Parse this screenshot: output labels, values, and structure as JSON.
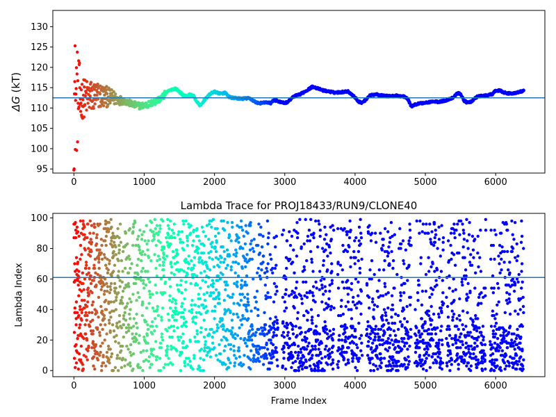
{
  "chart_data": [
    {
      "type": "scatter",
      "title": "",
      "xlabel": "",
      "ylabel": "ΔG (kT)",
      "ylabel_parts": {
        "symbol": "ΔG",
        "unit": " (kT)"
      },
      "xlim": [
        -300,
        6700
      ],
      "ylim": [
        94,
        134
      ],
      "xticks": [
        0,
        1000,
        2000,
        3000,
        4000,
        5000,
        6000
      ],
      "yticks": [
        95,
        100,
        105,
        110,
        115,
        120,
        125,
        130
      ],
      "hline": 112.5,
      "hline_color": "#1f77b4",
      "colormap": "rainbow (red at start → violet at end)",
      "x_max": 6400,
      "trend": [
        [
          50,
          112.0
        ],
        [
          150,
          112.5
        ],
        [
          250,
          112.8
        ],
        [
          350,
          113.0
        ],
        [
          450,
          112.8
        ],
        [
          550,
          112.5
        ],
        [
          650,
          112.0
        ],
        [
          750,
          111.5
        ],
        [
          850,
          110.8
        ],
        [
          950,
          110.5
        ],
        [
          1050,
          110.8
        ],
        [
          1150,
          111.5
        ],
        [
          1250,
          112.5
        ],
        [
          1300,
          113.5
        ],
        [
          1350,
          114.2
        ],
        [
          1400,
          114.6
        ],
        [
          1450,
          114.8
        ],
        [
          1500,
          114.0
        ],
        [
          1550,
          113.2
        ],
        [
          1600,
          112.9
        ],
        [
          1650,
          113.3
        ],
        [
          1700,
          113.0
        ],
        [
          1750,
          111.5
        ],
        [
          1800,
          110.5
        ],
        [
          1850,
          111.8
        ],
        [
          1900,
          112.8
        ],
        [
          1950,
          113.6
        ],
        [
          2000,
          114.0
        ],
        [
          2050,
          113.7
        ],
        [
          2100,
          113.5
        ],
        [
          2150,
          113.8
        ],
        [
          2200,
          112.8
        ],
        [
          2250,
          112.5
        ],
        [
          2300,
          112.4
        ],
        [
          2400,
          112.3
        ],
        [
          2500,
          112.4
        ],
        [
          2550,
          111.8
        ],
        [
          2600,
          111.3
        ],
        [
          2650,
          111.2
        ],
        [
          2750,
          111.4
        ],
        [
          2800,
          111.2
        ],
        [
          2850,
          112.0
        ],
        [
          2900,
          111.7
        ],
        [
          2950,
          111.4
        ],
        [
          3000,
          111.2
        ],
        [
          3050,
          111.6
        ],
        [
          3100,
          112.5
        ],
        [
          3150,
          113.0
        ],
        [
          3200,
          113.2
        ],
        [
          3300,
          114.2
        ],
        [
          3400,
          115.3
        ],
        [
          3450,
          114.9
        ],
        [
          3500,
          114.6
        ],
        [
          3550,
          114.3
        ],
        [
          3650,
          114.0
        ],
        [
          3700,
          113.8
        ],
        [
          3800,
          113.9
        ],
        [
          3900,
          114.1
        ],
        [
          4000,
          112.6
        ],
        [
          4050,
          111.6
        ],
        [
          4100,
          111.3
        ],
        [
          4150,
          112.0
        ],
        [
          4200,
          113.0
        ],
        [
          4300,
          113.4
        ],
        [
          4400,
          113.0
        ],
        [
          4500,
          112.9
        ],
        [
          4600,
          113.0
        ],
        [
          4700,
          112.8
        ],
        [
          4750,
          112.2
        ],
        [
          4800,
          110.4
        ],
        [
          4850,
          110.8
        ],
        [
          4900,
          111.1
        ],
        [
          5000,
          111.3
        ],
        [
          5100,
          111.6
        ],
        [
          5200,
          111.5
        ],
        [
          5300,
          111.9
        ],
        [
          5400,
          112.6
        ],
        [
          5450,
          113.6
        ],
        [
          5500,
          113.5
        ],
        [
          5550,
          111.8
        ],
        [
          5600,
          111.3
        ],
        [
          5650,
          111.5
        ],
        [
          5700,
          112.3
        ],
        [
          5750,
          112.9
        ],
        [
          5850,
          113.0
        ],
        [
          5950,
          113.4
        ],
        [
          6000,
          114.2
        ],
        [
          6050,
          114.3
        ],
        [
          6100,
          114.0
        ],
        [
          6150,
          113.6
        ],
        [
          6250,
          113.6
        ],
        [
          6300,
          113.8
        ],
        [
          6350,
          114.0
        ],
        [
          6400,
          114.2
        ]
      ]
    },
    {
      "type": "scatter",
      "title": "Lambda Trace for PROJ18433/RUN9/CLONE40",
      "xlabel": "Frame Index",
      "ylabel": "Lambda Index",
      "xlim": [
        -300,
        6700
      ],
      "ylim": [
        -4,
        103
      ],
      "xticks": [
        0,
        1000,
        2000,
        3000,
        4000,
        5000,
        6000
      ],
      "yticks": [
        0,
        20,
        40,
        60,
        80,
        100
      ],
      "hline": 61,
      "hline_color": "#1f77b4",
      "colormap": "rainbow (red at start → violet at end)",
      "x_max": 6400,
      "lambda_min": 0,
      "lambda_max": 99
    }
  ]
}
